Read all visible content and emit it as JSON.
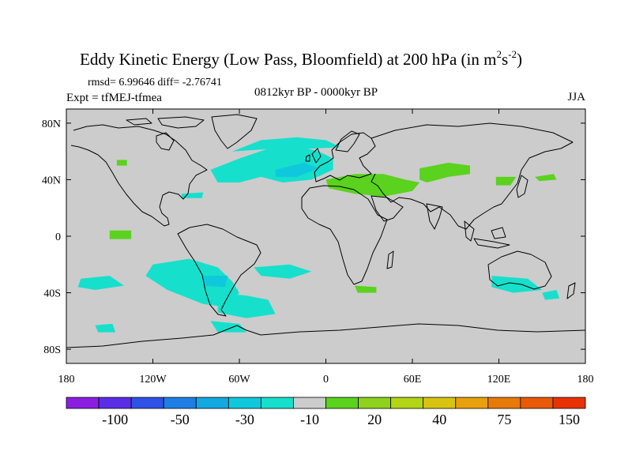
{
  "chart_data": {
    "type": "heatmap",
    "title": "Eddy Kinetic Energy (Low Pass, Bloomfield) at 200 hPa (in m",
    "title_unit_sup1": "2",
    "title_unit_mid": "s",
    "title_unit_sup2": "-2",
    "title_unit_close": ")",
    "stats": "rmsd= 6.99646 diff= -2.76741",
    "experiment": "Expt = tfMEJ-tfmea",
    "period": "0812kyr BP - 0000kyr BP",
    "season": "JJA",
    "x_range": [
      -180,
      180
    ],
    "y_range": [
      -90,
      90
    ],
    "x_ticks": [
      {
        "value": -180,
        "label": "180"
      },
      {
        "value": -120,
        "label": "120W"
      },
      {
        "value": -60,
        "label": "60W"
      },
      {
        "value": 0,
        "label": "0"
      },
      {
        "value": 60,
        "label": "60E"
      },
      {
        "value": 120,
        "label": "120E"
      },
      {
        "value": 180,
        "label": "180"
      }
    ],
    "y_ticks": [
      {
        "value": 80,
        "label": "80N"
      },
      {
        "value": 40,
        "label": "40N"
      },
      {
        "value": 0,
        "label": "0"
      },
      {
        "value": -40,
        "label": "40S"
      },
      {
        "value": -80,
        "label": "80S"
      }
    ],
    "colorbar": {
      "colors": [
        "#8a1ee0",
        "#5a2ee6",
        "#2e52e6",
        "#1e7ee6",
        "#12a8e0",
        "#10c8dc",
        "#16e0cc",
        "#cccccc",
        "#5ad21e",
        "#8ed21c",
        "#b4d416",
        "#d8c410",
        "#e8a00c",
        "#e87a0a",
        "#e85a08",
        "#e83206"
      ],
      "labels": [
        {
          "boundary": 2,
          "text": "-100"
        },
        {
          "boundary": 4,
          "text": "-50"
        },
        {
          "boundary": 6,
          "text": "-30"
        },
        {
          "boundary": 8,
          "text": "-10"
        },
        {
          "boundary": 10,
          "text": "20"
        },
        {
          "boundary": 12,
          "text": "40"
        },
        {
          "boundary": 14,
          "text": "75"
        },
        {
          "boundary": 16,
          "text": "150"
        }
      ]
    },
    "anomaly_regions": [
      {
        "level": "-10",
        "color": "#16e0cc",
        "lonlat": [
          [
            -80,
            47
          ],
          [
            -60,
            55
          ],
          [
            -40,
            62
          ],
          [
            -20,
            64
          ],
          [
            -5,
            60
          ],
          [
            5,
            55
          ],
          [
            5,
            47
          ],
          [
            -10,
            40
          ],
          [
            -30,
            38
          ],
          [
            -45,
            42
          ],
          [
            -60,
            38
          ],
          [
            -75,
            38
          ]
        ]
      },
      {
        "level": "-10",
        "color": "#16e0cc",
        "lonlat": [
          [
            -65,
            60
          ],
          [
            -45,
            68
          ],
          [
            -20,
            70
          ],
          [
            0,
            68
          ],
          [
            10,
            63
          ],
          [
            -10,
            62
          ],
          [
            -35,
            62
          ]
        ]
      },
      {
        "level": "-10",
        "color": "#16e0cc",
        "lonlat": [
          [
            -120,
            -20
          ],
          [
            -95,
            -16
          ],
          [
            -75,
            -22
          ],
          [
            -65,
            -32
          ],
          [
            -60,
            -40
          ],
          [
            -70,
            -50
          ],
          [
            -85,
            -48
          ],
          [
            -110,
            -38
          ],
          [
            -125,
            -28
          ]
        ]
      },
      {
        "level": "-10",
        "color": "#16e0cc",
        "lonlat": [
          [
            -75,
            -40
          ],
          [
            -55,
            -42
          ],
          [
            -40,
            -45
          ],
          [
            -35,
            -55
          ],
          [
            -55,
            -58
          ],
          [
            -75,
            -54
          ]
        ]
      },
      {
        "level": "-10",
        "color": "#16e0cc",
        "lonlat": [
          [
            -170,
            -30
          ],
          [
            -150,
            -28
          ],
          [
            -140,
            -35
          ],
          [
            -160,
            -38
          ],
          [
            -172,
            -36
          ]
        ]
      },
      {
        "level": "-10",
        "color": "#16e0cc",
        "lonlat": [
          [
            -50,
            -22
          ],
          [
            -25,
            -20
          ],
          [
            -10,
            -25
          ],
          [
            -25,
            -30
          ],
          [
            -45,
            -28
          ]
        ]
      },
      {
        "level": "-10",
        "color": "#16e0cc",
        "lonlat": [
          [
            115,
            -28
          ],
          [
            140,
            -30
          ],
          [
            150,
            -38
          ],
          [
            130,
            -40
          ],
          [
            115,
            -36
          ]
        ]
      },
      {
        "level": "-10",
        "color": "#16e0cc",
        "lonlat": [
          [
            150,
            -40
          ],
          [
            160,
            -38
          ],
          [
            162,
            -44
          ],
          [
            152,
            -45
          ]
        ]
      },
      {
        "level": "-10",
        "color": "#16e0cc",
        "lonlat": [
          [
            -100,
            30
          ],
          [
            -85,
            31
          ],
          [
            -86,
            27
          ],
          [
            -100,
            27
          ]
        ]
      },
      {
        "level": "-10",
        "color": "#16e0cc",
        "lonlat": [
          [
            -160,
            -63
          ],
          [
            -148,
            -62
          ],
          [
            -146,
            -68
          ],
          [
            -158,
            -68
          ]
        ]
      },
      {
        "level": "-10",
        "color": "#16e0cc",
        "lonlat": [
          [
            -80,
            -60
          ],
          [
            -60,
            -62
          ],
          [
            -55,
            -68
          ],
          [
            -75,
            -68
          ]
        ]
      },
      {
        "level": "20",
        "color": "#5ad21e",
        "lonlat": [
          [
            0,
            40
          ],
          [
            20,
            44
          ],
          [
            40,
            44
          ],
          [
            55,
            40
          ],
          [
            65,
            38
          ],
          [
            60,
            32
          ],
          [
            40,
            28
          ],
          [
            20,
            30
          ],
          [
            2,
            34
          ]
        ]
      },
      {
        "level": "20",
        "color": "#5ad21e",
        "lonlat": [
          [
            65,
            48
          ],
          [
            85,
            52
          ],
          [
            100,
            50
          ],
          [
            100,
            44
          ],
          [
            85,
            42
          ],
          [
            70,
            38
          ],
          [
            65,
            40
          ]
        ]
      },
      {
        "level": "20",
        "color": "#5ad21e",
        "lonlat": [
          [
            118,
            42
          ],
          [
            132,
            42
          ],
          [
            128,
            36
          ],
          [
            118,
            36
          ]
        ]
      },
      {
        "level": "20",
        "color": "#5ad21e",
        "lonlat": [
          [
            145,
            42
          ],
          [
            158,
            44
          ],
          [
            160,
            40
          ],
          [
            148,
            39
          ]
        ]
      },
      {
        "level": "20",
        "color": "#5ad21e",
        "lonlat": [
          [
            -150,
            4
          ],
          [
            -135,
            4
          ],
          [
            -135,
            -2
          ],
          [
            -150,
            -2
          ]
        ]
      },
      {
        "level": "20",
        "color": "#5ad21e",
        "lonlat": [
          [
            20,
            -35
          ],
          [
            35,
            -36
          ],
          [
            35,
            -40
          ],
          [
            22,
            -40
          ]
        ]
      },
      {
        "level": "20",
        "color": "#5ad21e",
        "lonlat": [
          [
            -145,
            54
          ],
          [
            -138,
            54
          ],
          [
            -138,
            50
          ],
          [
            -145,
            50
          ]
        ]
      }
    ],
    "deep_regions": [
      {
        "level": "-30",
        "color": "#10c8dc",
        "lonlat": [
          [
            -85,
            -28
          ],
          [
            -68,
            -28
          ],
          [
            -70,
            -36
          ],
          [
            -85,
            -35
          ]
        ]
      },
      {
        "level": "-30",
        "color": "#10c8dc",
        "lonlat": [
          [
            -35,
            47
          ],
          [
            -15,
            52
          ],
          [
            -5,
            48
          ],
          [
            -20,
            42
          ],
          [
            -35,
            42
          ]
        ]
      }
    ]
  }
}
